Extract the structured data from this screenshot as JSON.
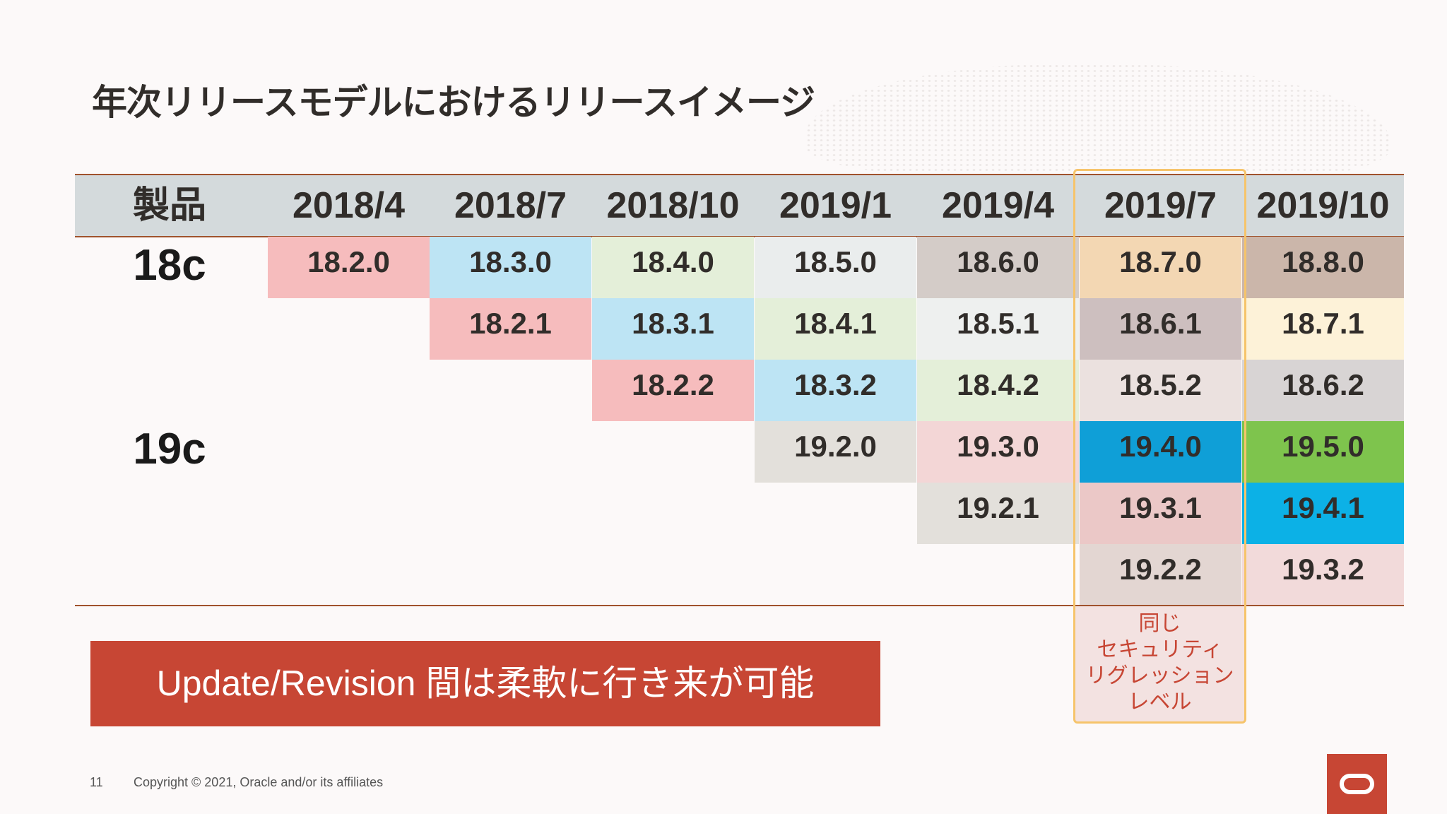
{
  "title": "年次リリースモデルにおけるリリースイメージ",
  "header": {
    "product_label": "製品",
    "periods": [
      "2018/4",
      "2018/7",
      "2018/10",
      "2019/1",
      "2019/4",
      "2019/7",
      "2019/10"
    ]
  },
  "products": [
    "18c",
    "19c"
  ],
  "rows": [
    [
      "18.2.0",
      "18.3.0",
      "18.4.0",
      "18.5.0",
      "18.6.0",
      "18.7.0",
      "18.8.0"
    ],
    [
      "",
      "18.2.1",
      "18.3.1",
      "18.4.1",
      "18.5.1",
      "18.6.1",
      "18.7.1"
    ],
    [
      "",
      "",
      "18.2.2",
      "18.3.2",
      "18.4.2",
      "18.5.2",
      "18.6.2"
    ],
    [
      "",
      "",
      "",
      "19.2.0",
      "19.3.0",
      "19.4.0",
      "19.5.0"
    ],
    [
      "",
      "",
      "",
      "",
      "19.2.1",
      "19.3.1",
      "19.4.1"
    ],
    [
      "",
      "",
      "",
      "",
      "",
      "19.2.2",
      "19.3.2"
    ]
  ],
  "colors": {
    "18.2": "#f6bcbd",
    "18.3": "#bde4f4",
    "18.4": "#e4efd9",
    "18.5": "#eaeded",
    "18.6": "#d4ccc8",
    "18.7": "#f3d7b3",
    "18.8": "#cbb6aa",
    "18.7.1": "#fdf2d8",
    "18.6.1": "#cdbfbf",
    "18.5.1": "#eef0ef",
    "18.5.2": "#ebe1df",
    "18.6.2": "#d8d4d4",
    "19.2": "#e3e0db",
    "19.3": "#f3d6d6",
    "19.4.0": "#0f9fd7",
    "19.5.0": "#7ec44d",
    "19.4.1": "#0cb1e6",
    "19.3.1": "#ebc8c7",
    "19.2.1": "#e3e0db",
    "19.2.2": "#e3d6d2",
    "19.3.2": "#f2dada"
  },
  "note": [
    "同じ",
    "セキュリティ",
    "リグレッション",
    "レベル"
  ],
  "banner": "Update/Revision 間は柔軟に行き来が可能",
  "footer": {
    "page": "11",
    "copyright": "Copyright © 2021, Oracle and/or its affiliates"
  },
  "logo_icon": "oracle-logo-icon"
}
